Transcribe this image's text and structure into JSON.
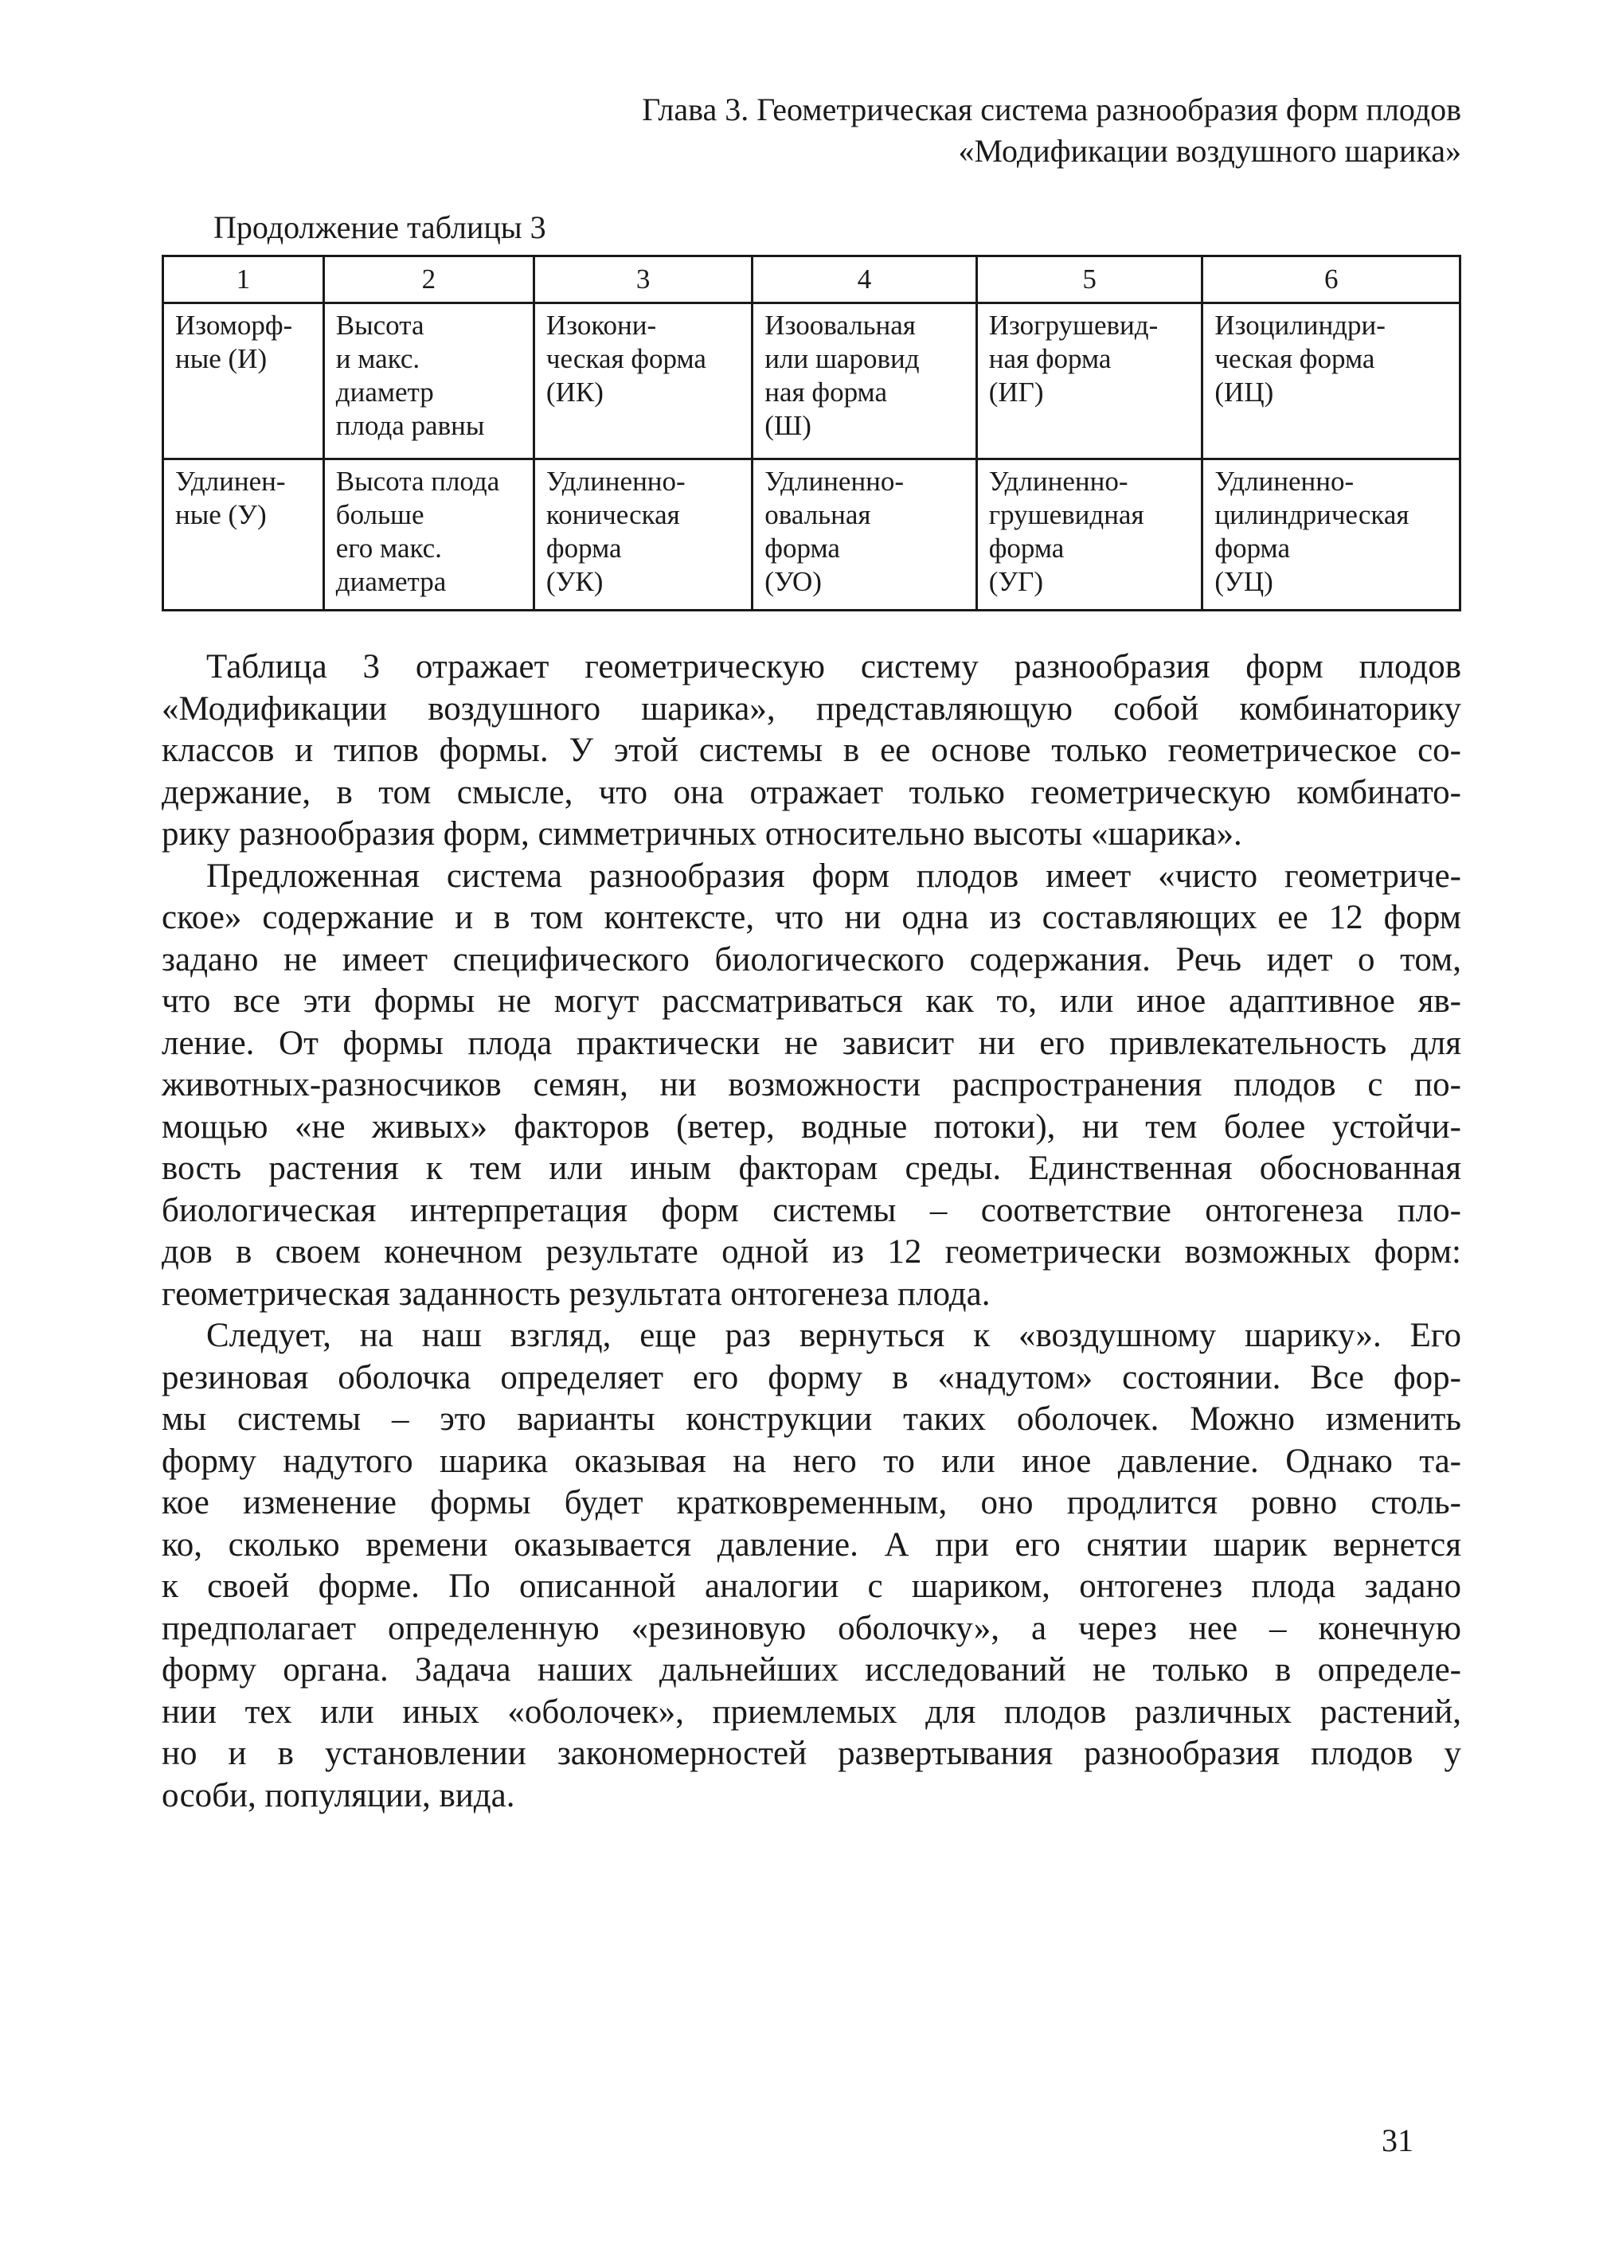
{
  "running_head": {
    "line1": "Глава 3. Геометрическая система разнообразия форм плодов",
    "line2": "«Модификации воздушного шарика»"
  },
  "table": {
    "caption": "Продолжение таблицы 3",
    "headers": [
      "1",
      "2",
      "3",
      "4",
      "5",
      "6"
    ],
    "rows": [
      [
        "Изоморф-\nные (И)",
        "Высота\nи макс.\nдиаметр\nплода равны",
        "Изокони-\nческая форма\n(ИК)",
        "Изоовальная\nили шаровид\nная форма\n(Ш)",
        "Изогрушевид-\nная форма\n(ИГ)",
        "Изоцилиндри-\nческая форма\n(ИЦ)"
      ],
      [
        "Удлинен-\nные (У)",
        "Высота плода\nбольше\nего макс.\nдиаметра",
        "Удлиненно-\nконическая\nформа\n(УК)",
        "Удлиненно-\nовальная\nформа\n(УО)",
        "Удлиненно-\nгрушевидная\nформа\n(УГ)",
        "Удлиненно-\nцилиндрическая\nформа\n(УЦ)"
      ]
    ]
  },
  "paragraphs": [
    [
      "Таблица 3 отражает геометрическую систему разнообразия форм плодов",
      "«Модификации воздушного шарика», представляющую собой комбинаторику",
      "классов и типов формы. У этой системы в ее основе только геометрическое со-",
      "держание, в том смысле, что она отражает только геометрическую комбинато-",
      "рику разнообразия форм, симметричных относительно высоты «шарика»."
    ],
    [
      "Предложенная система разнообразия форм плодов имеет «чисто геометриче-",
      "ское» содержание и в том контексте, что ни одна из составляющих ее 12 форм",
      "задано не имеет специфического биологического содержания. Речь идет о том,",
      "что все эти формы не могут рассматриваться как то, или иное адаптивное яв-",
      "ление. От формы плода практически не зависит ни его привлекательность для",
      "животных-разносчиков семян, ни возможности распространения плодов с по-",
      "мощью «не живых» факторов (ветер, водные потоки), ни тем более устойчи-",
      "вость растения к тем или иным факторам среды. Единственная обоснованная",
      "биологическая интерпретация форм системы – соответствие онтогенеза пло-",
      "дов в своем конечном результате одной из 12 геометрически возможных форм:",
      "геометрическая заданность результата онтогенеза плода."
    ],
    [
      "Следует, на наш взгляд, еще раз вернуться к «воздушному шарику». Его",
      "резиновая оболочка определяет его форму в «надутом» состоянии. Все фор-",
      "мы системы – это варианты конструкции таких оболочек. Можно изменить",
      "форму надутого шарика оказывая на него то или иное давление. Однако та-",
      "кое изменение формы будет кратковременным, оно продлится ровно столь-",
      "ко, сколько времени оказывается давление. А при его снятии шарик вернется",
      "к своей форме. По описанной аналогии с шариком, онтогенез плода задано",
      "предполагает определенную «резиновую оболочку», а через нее – конечную",
      "форму органа. Задача наших дальнейших исследований не только в определе-",
      "нии тех или иных «оболочек», приемлемых для плодов различных растений,",
      "но и в установлении закономерностей развертывания разнообразия плодов у",
      "особи, популяции, вида."
    ]
  ],
  "page_number": "31"
}
